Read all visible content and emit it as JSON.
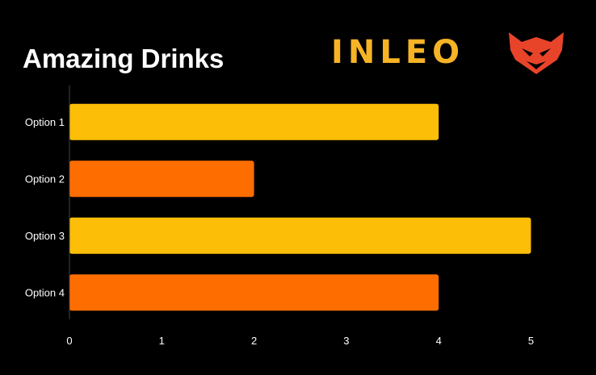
{
  "brand": {
    "text": "INLEO",
    "text_color": "#F5B325",
    "logo_color": "#E8442A",
    "logo_icon": "lion-head-icon"
  },
  "chart_data": {
    "type": "bar",
    "orientation": "horizontal",
    "title": "Amazing Drinks",
    "xlabel": "",
    "ylabel": "",
    "categories": [
      "Option 1",
      "Option 2",
      "Option 3",
      "Option 4"
    ],
    "values": [
      4,
      2,
      5,
      4
    ],
    "colors": [
      "#FDBE07",
      "#FE6D00",
      "#FDBE07",
      "#FE6D00"
    ],
    "xlim": [
      0,
      5
    ],
    "x_ticks": [
      "0",
      "1",
      "2",
      "3",
      "4",
      "5"
    ],
    "grid": false,
    "legend": "none"
  }
}
